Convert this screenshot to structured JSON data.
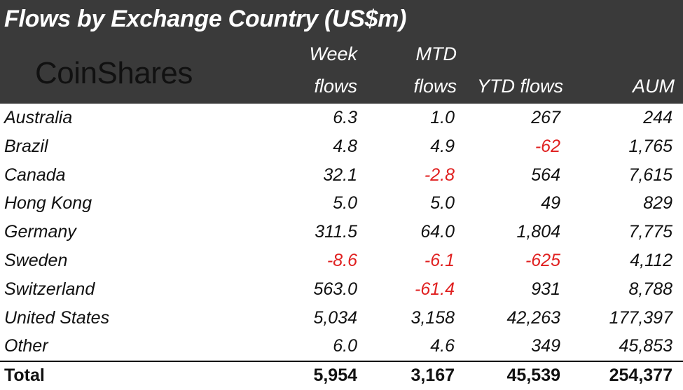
{
  "title": "Flows by Exchange Country (US$m)",
  "logo_text": "CoinShares",
  "headers": {
    "week_line1": "Week",
    "week_line2": "flows",
    "mtd_line1": "MTD",
    "mtd_line2": "flows",
    "ytd": "YTD flows",
    "aum": "AUM"
  },
  "rows": [
    {
      "country": "Australia",
      "week": "6.3",
      "mtd": "1.0",
      "ytd": "267",
      "aum": "244"
    },
    {
      "country": "Brazil",
      "week": "4.8",
      "mtd": "4.9",
      "ytd": "-62",
      "aum": "1,765"
    },
    {
      "country": "Canada",
      "week": "32.1",
      "mtd": "-2.8",
      "ytd": "564",
      "aum": "7,615"
    },
    {
      "country": "Hong Kong",
      "week": "5.0",
      "mtd": "5.0",
      "ytd": "49",
      "aum": "829"
    },
    {
      "country": "Germany",
      "week": "311.5",
      "mtd": "64.0",
      "ytd": "1,804",
      "aum": "7,775"
    },
    {
      "country": "Sweden",
      "week": "-8.6",
      "mtd": "-6.1",
      "ytd": "-625",
      "aum": "4,112"
    },
    {
      "country": "Switzerland",
      "week": "563.0",
      "mtd": "-61.4",
      "ytd": "931",
      "aum": "8,788"
    },
    {
      "country": "United States",
      "week": "5,034",
      "mtd": "3,158",
      "ytd": "42,263",
      "aum": "177,397"
    },
    {
      "country": "Other",
      "week": "6.0",
      "mtd": "4.6",
      "ytd": "349",
      "aum": "45,853"
    }
  ],
  "total": {
    "label": "Total",
    "week": "5,954",
    "mtd": "3,167",
    "ytd": "45,539",
    "aum": "254,377"
  },
  "colors": {
    "header_bg": "#3a3a3a",
    "negative": "#e02020",
    "text": "#111111"
  }
}
